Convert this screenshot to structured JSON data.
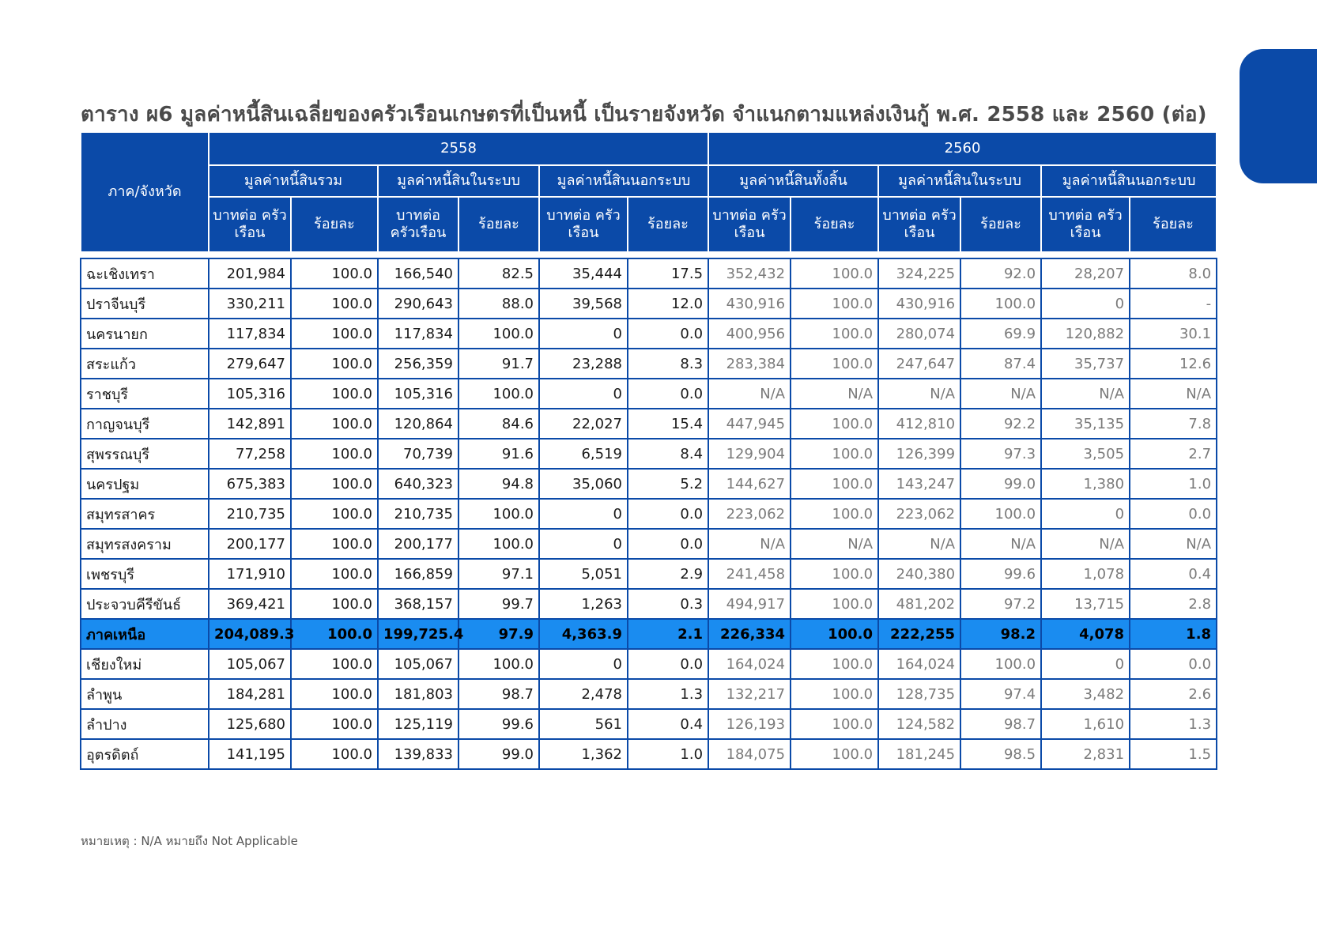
{
  "title": "ตาราง ผ6 มูลค่าหนี้สินเฉลี่ยของครัวเรือนเกษตรที่เป็นหนี้ เป็นรายจังหวัด จำแนกตามแหล่งเงินกู้ พ.ศ. 2558 และ 2560 (ต่อ)",
  "header": {
    "region": "ภาค/จังหวัด",
    "year1": "2558",
    "year2": "2560",
    "groups1": [
      "มูลค่าหนี้สินรวม",
      "มูลค่าหนี้สินในระบบ",
      "มูลค่าหนี้สินนอกระบบ"
    ],
    "groups2": [
      "มูลค่าหนี้สินทั้งสิ้น",
      "มูลค่าหนี้สินในระบบ",
      "มูลค่าหนี้สินนอกระบบ"
    ],
    "baht": "บาทต่อ ครัวเรือน",
    "pct": "ร้อยละ"
  },
  "rows": [
    {
      "name": "ฉะเชิงเทรา",
      "v": [
        "201,984",
        "100.0",
        "166,540",
        "82.5",
        "35,444",
        "17.5",
        "352,432",
        "100.0",
        "324,225",
        "92.0",
        "28,207",
        "8.0"
      ]
    },
    {
      "name": "ปราจีนบุรี",
      "v": [
        "330,211",
        "100.0",
        "290,643",
        "88.0",
        "39,568",
        "12.0",
        "430,916",
        "100.0",
        "430,916",
        "100.0",
        "0",
        "-"
      ]
    },
    {
      "name": "นครนายก",
      "v": [
        "117,834",
        "100.0",
        "117,834",
        "100.0",
        "0",
        "0.0",
        "400,956",
        "100.0",
        "280,074",
        "69.9",
        "120,882",
        "30.1"
      ]
    },
    {
      "name": "สระแก้ว",
      "v": [
        "279,647",
        "100.0",
        "256,359",
        "91.7",
        "23,288",
        "8.3",
        "283,384",
        "100.0",
        "247,647",
        "87.4",
        "35,737",
        "12.6"
      ]
    },
    {
      "name": "ราชบุรี",
      "v": [
        "105,316",
        "100.0",
        "105,316",
        "100.0",
        "0",
        "0.0",
        "N/A",
        "N/A",
        "N/A",
        "N/A",
        "N/A",
        "N/A"
      ]
    },
    {
      "name": "กาญจนบุรี",
      "v": [
        "142,891",
        "100.0",
        "120,864",
        "84.6",
        "22,027",
        "15.4",
        "447,945",
        "100.0",
        "412,810",
        "92.2",
        "35,135",
        "7.8"
      ]
    },
    {
      "name": "สุพรรณบุรี",
      "v": [
        "77,258",
        "100.0",
        "70,739",
        "91.6",
        "6,519",
        "8.4",
        "129,904",
        "100.0",
        "126,399",
        "97.3",
        "3,505",
        "2.7"
      ]
    },
    {
      "name": "นครปฐม",
      "v": [
        "675,383",
        "100.0",
        "640,323",
        "94.8",
        "35,060",
        "5.2",
        "144,627",
        "100.0",
        "143,247",
        "99.0",
        "1,380",
        "1.0"
      ]
    },
    {
      "name": "สมุทรสาคร",
      "v": [
        "210,735",
        "100.0",
        "210,735",
        "100.0",
        "0",
        "0.0",
        "223,062",
        "100.0",
        "223,062",
        "100.0",
        "0",
        "0.0"
      ]
    },
    {
      "name": "สมุทรสงคราม",
      "v": [
        "200,177",
        "100.0",
        "200,177",
        "100.0",
        "0",
        "0.0",
        "N/A",
        "N/A",
        "N/A",
        "N/A",
        "N/A",
        "N/A"
      ]
    },
    {
      "name": "เพชรบุรี",
      "v": [
        "171,910",
        "100.0",
        "166,859",
        "97.1",
        "5,051",
        "2.9",
        "241,458",
        "100.0",
        "240,380",
        "99.6",
        "1,078",
        "0.4"
      ]
    },
    {
      "name": "ประจวบคีรีขันธ์",
      "v": [
        "369,421",
        "100.0",
        "368,157",
        "99.7",
        "1,263",
        "0.3",
        "494,917",
        "100.0",
        "481,202",
        "97.2",
        "13,715",
        "2.8"
      ]
    },
    {
      "name": "ภาคเหนือ",
      "highlight": true,
      "v": [
        "204,089.3",
        "100.0",
        "199,725.4",
        "97.9",
        "4,363.9",
        "2.1",
        "226,334",
        "100.0",
        "222,255",
        "98.2",
        "4,078",
        "1.8"
      ]
    },
    {
      "name": "เชียงใหม่",
      "v": [
        "105,067",
        "100.0",
        "105,067",
        "100.0",
        "0",
        "0.0",
        "164,024",
        "100.0",
        "164,024",
        "100.0",
        "0",
        "0.0"
      ]
    },
    {
      "name": "ลำพูน",
      "v": [
        "184,281",
        "100.0",
        "181,803",
        "98.7",
        "2,478",
        "1.3",
        "132,217",
        "100.0",
        "128,735",
        "97.4",
        "3,482",
        "2.6"
      ]
    },
    {
      "name": "ลำปาง",
      "v": [
        "125,680",
        "100.0",
        "125,119",
        "99.6",
        "561",
        "0.4",
        "126,193",
        "100.0",
        "124,582",
        "98.7",
        "1,610",
        "1.3"
      ]
    },
    {
      "name": "อุตรดิตถ์",
      "v": [
        "141,195",
        "100.0",
        "139,833",
        "99.0",
        "1,362",
        "1.0",
        "184,075",
        "100.0",
        "181,245",
        "98.5",
        "2,831",
        "1.5"
      ]
    }
  ],
  "note": "หมายเหตุ : N/A หมายถึง Not Applicable",
  "colors": {
    "accent": "#0b4aa8",
    "highlight": "#1a8cf0"
  }
}
